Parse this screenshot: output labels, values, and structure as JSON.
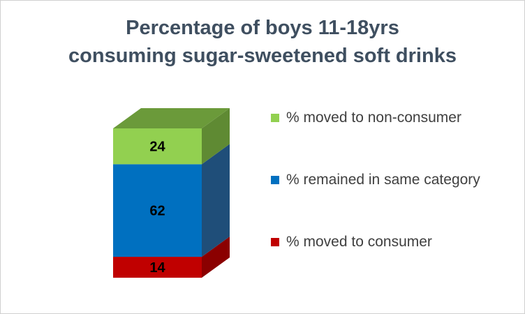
{
  "chart_data": {
    "type": "bar",
    "stacked": true,
    "three_d": true,
    "title_lines": [
      "Percentage of boys 11-18yrs",
      "consuming sugar-sweetened soft drinks"
    ],
    "categories": [
      ""
    ],
    "series": [
      {
        "name": "% moved to consumer",
        "values": [
          14
        ],
        "color": "#c00000",
        "color_side": "#8b0000",
        "color_top": "#a00000"
      },
      {
        "name": "% remained in same category",
        "values": [
          62
        ],
        "color": "#0070c0",
        "color_side": "#1f4e79",
        "color_top": "#2e75b6"
      },
      {
        "name": "% moved to non-consumer",
        "values": [
          24
        ],
        "color": "#92d050",
        "color_side": "#5f8a33",
        "color_top": "#6b9a3a"
      }
    ],
    "ylim": [
      0,
      100
    ],
    "grid": false,
    "legend_position": "right",
    "legend_order": [
      2,
      1,
      0
    ]
  }
}
